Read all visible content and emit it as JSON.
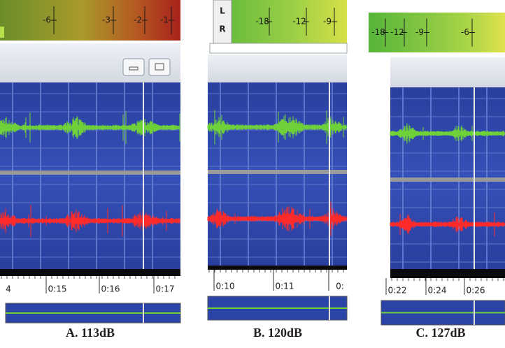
{
  "panels": [
    {
      "meter_ticks": [
        "-6",
        "-3",
        "-2",
        "-1"
      ],
      "time_labels": [
        "4",
        "0:15",
        "0:16",
        "0:17"
      ],
      "caption": "A. 113dB"
    },
    {
      "channels": [
        "L",
        "R"
      ],
      "meter_ticks": [
        "-18",
        "-12",
        "-9"
      ],
      "time_labels": [
        "0:10",
        "0:11",
        "0:"
      ],
      "caption": "B. 120dB"
    },
    {
      "meter_ticks": [
        "-18",
        "-12",
        "-9",
        "-6"
      ],
      "time_labels": [
        "0:22",
        "0:24",
        "0:26"
      ],
      "caption": "C. 127dB"
    }
  ]
}
